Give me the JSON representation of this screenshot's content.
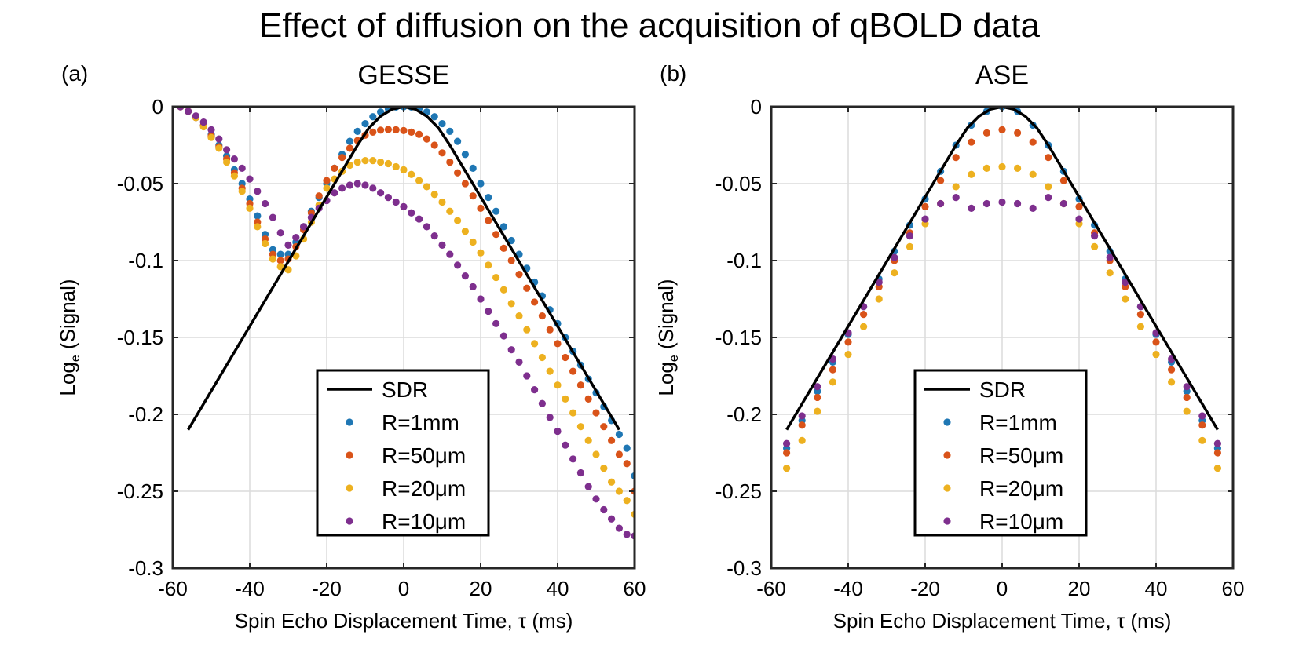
{
  "figure": {
    "title": "Effect of diffusion on the acquisition of qBOLD data"
  },
  "chart_data": [
    {
      "type": "scatter",
      "panel_label": "(a)",
      "title": "GESSE",
      "xlabel": "Spin Echo Displacement Time, τ (ms)",
      "ylabel": "Log",
      "ylabel_sub": "e",
      "ylabel_tail": " (Signal)",
      "xlim": [
        -60,
        60
      ],
      "ylim": [
        -0.3,
        0
      ],
      "xticks": [
        -60,
        -40,
        -20,
        0,
        20,
        40,
        60
      ],
      "yticks": [
        0,
        -0.05,
        -0.1,
        -0.15,
        -0.2,
        -0.25,
        -0.3
      ],
      "xtick_labels": [
        "-60",
        "-40",
        "-20",
        "0",
        "20",
        "40",
        "60"
      ],
      "ytick_labels": [
        "0",
        "-0.05",
        "-0.1",
        "-0.15",
        "-0.2",
        "-0.25",
        "-0.3"
      ],
      "grid": true,
      "legend_position": "bottom-center",
      "line": {
        "name": "SDR",
        "color": "#000000",
        "x": [
          -56,
          -12,
          -9,
          -6,
          -3,
          0,
          3,
          6,
          9,
          12,
          56
        ],
        "y": [
          -0.21,
          -0.025,
          -0.0137,
          -0.0062,
          -0.0016,
          0,
          -0.0016,
          -0.0062,
          -0.0137,
          -0.025,
          -0.21
        ]
      },
      "series": [
        {
          "name": "R=1mm",
          "color": "#1f77b4",
          "x": [
            -58,
            -56,
            -54,
            -52,
            -50,
            -48,
            -46,
            -44,
            -42,
            -40,
            -38,
            -36,
            -34,
            -32,
            -30,
            -28,
            -26,
            -24,
            -22,
            -20,
            -18,
            -16,
            -14,
            -12,
            -10,
            -8,
            -6,
            -4,
            -2,
            0,
            2,
            4,
            6,
            8,
            10,
            12,
            14,
            16,
            18,
            20,
            22,
            24,
            26,
            28,
            30,
            32,
            34,
            36,
            38,
            40,
            42,
            44,
            46,
            48,
            50,
            52,
            54,
            56,
            58,
            60
          ],
          "y": [
            0,
            -0.003,
            -0.007,
            -0.012,
            -0.018,
            -0.025,
            -0.032,
            -0.041,
            -0.05,
            -0.06,
            -0.071,
            -0.083,
            -0.093,
            -0.096,
            -0.096,
            -0.088,
            -0.078,
            -0.068,
            -0.059,
            -0.05,
            -0.04,
            -0.031,
            -0.0225,
            -0.016,
            -0.011,
            -0.0065,
            -0.0034,
            -0.0012,
            -0.0002,
            0,
            -0.0002,
            -0.0012,
            -0.0034,
            -0.0065,
            -0.011,
            -0.016,
            -0.0225,
            -0.031,
            -0.04,
            -0.05,
            -0.059,
            -0.068,
            -0.078,
            -0.087,
            -0.096,
            -0.105,
            -0.114,
            -0.123,
            -0.132,
            -0.141,
            -0.15,
            -0.159,
            -0.168,
            -0.177,
            -0.186,
            -0.195,
            -0.204,
            -0.213,
            -0.222,
            -0.24
          ]
        },
        {
          "name": "R=50μm",
          "color": "#d95319",
          "x": [
            -58,
            -56,
            -54,
            -52,
            -50,
            -48,
            -46,
            -44,
            -42,
            -40,
            -38,
            -36,
            -34,
            -32,
            -30,
            -28,
            -26,
            -24,
            -22,
            -20,
            -18,
            -16,
            -14,
            -12,
            -10,
            -8,
            -6,
            -4,
            -2,
            0,
            2,
            4,
            6,
            8,
            10,
            12,
            14,
            16,
            18,
            20,
            22,
            24,
            26,
            28,
            30,
            32,
            34,
            36,
            38,
            40,
            42,
            44,
            46,
            48,
            50,
            52,
            54,
            56,
            58,
            60
          ],
          "y": [
            0,
            -0.003,
            -0.007,
            -0.012,
            -0.019,
            -0.026,
            -0.034,
            -0.043,
            -0.053,
            -0.063,
            -0.075,
            -0.086,
            -0.096,
            -0.1,
            -0.099,
            -0.091,
            -0.08,
            -0.069,
            -0.058,
            -0.048,
            -0.04,
            -0.033,
            -0.027,
            -0.022,
            -0.0185,
            -0.0165,
            -0.0152,
            -0.0148,
            -0.015,
            -0.0155,
            -0.0165,
            -0.018,
            -0.021,
            -0.025,
            -0.03,
            -0.036,
            -0.043,
            -0.05,
            -0.058,
            -0.066,
            -0.074,
            -0.083,
            -0.092,
            -0.1,
            -0.109,
            -0.118,
            -0.127,
            -0.136,
            -0.145,
            -0.154,
            -0.163,
            -0.172,
            -0.181,
            -0.19,
            -0.199,
            -0.208,
            -0.217,
            -0.226,
            -0.232,
            -0.25
          ]
        },
        {
          "name": "R=20μm",
          "color": "#edb120",
          "x": [
            -58,
            -56,
            -54,
            -52,
            -50,
            -48,
            -46,
            -44,
            -42,
            -40,
            -38,
            -36,
            -34,
            -32,
            -30,
            -28,
            -26,
            -24,
            -22,
            -20,
            -18,
            -16,
            -14,
            -12,
            -10,
            -8,
            -6,
            -4,
            -2,
            0,
            2,
            4,
            6,
            8,
            10,
            12,
            14,
            16,
            18,
            20,
            22,
            24,
            26,
            28,
            30,
            32,
            34,
            36,
            38,
            40,
            42,
            44,
            46,
            48,
            50,
            52,
            54,
            56,
            58,
            60
          ],
          "y": [
            0,
            -0.003,
            -0.007,
            -0.013,
            -0.02,
            -0.027,
            -0.036,
            -0.045,
            -0.055,
            -0.066,
            -0.078,
            -0.089,
            -0.099,
            -0.104,
            -0.106,
            -0.097,
            -0.086,
            -0.075,
            -0.064,
            -0.053,
            -0.047,
            -0.042,
            -0.038,
            -0.036,
            -0.035,
            -0.035,
            -0.036,
            -0.037,
            -0.039,
            -0.041,
            -0.044,
            -0.048,
            -0.052,
            -0.057,
            -0.062,
            -0.068,
            -0.074,
            -0.081,
            -0.088,
            -0.095,
            -0.103,
            -0.111,
            -0.119,
            -0.128,
            -0.136,
            -0.145,
            -0.154,
            -0.163,
            -0.172,
            -0.181,
            -0.19,
            -0.199,
            -0.208,
            -0.217,
            -0.226,
            -0.235,
            -0.244,
            -0.25,
            -0.256,
            -0.265
          ]
        },
        {
          "name": "R=10μm",
          "color": "#7e2f8e",
          "x": [
            -58,
            -56,
            -54,
            -52,
            -50,
            -48,
            -46,
            -44,
            -42,
            -40,
            -38,
            -36,
            -34,
            -32,
            -30,
            -28,
            -26,
            -24,
            -22,
            -20,
            -18,
            -16,
            -14,
            -12,
            -10,
            -8,
            -6,
            -4,
            -2,
            0,
            2,
            4,
            6,
            8,
            10,
            12,
            14,
            16,
            18,
            20,
            22,
            24,
            26,
            28,
            30,
            32,
            34,
            36,
            38,
            40,
            42,
            44,
            46,
            48,
            50,
            52,
            54,
            56,
            58,
            60
          ],
          "y": [
            0,
            -0.003,
            -0.006,
            -0.01,
            -0.015,
            -0.021,
            -0.028,
            -0.034,
            -0.04,
            -0.047,
            -0.055,
            -0.063,
            -0.072,
            -0.082,
            -0.09,
            -0.085,
            -0.078,
            -0.072,
            -0.066,
            -0.061,
            -0.056,
            -0.053,
            -0.051,
            -0.05,
            -0.051,
            -0.053,
            -0.056,
            -0.059,
            -0.062,
            -0.065,
            -0.069,
            -0.073,
            -0.078,
            -0.084,
            -0.09,
            -0.096,
            -0.103,
            -0.11,
            -0.117,
            -0.125,
            -0.133,
            -0.141,
            -0.149,
            -0.158,
            -0.166,
            -0.175,
            -0.184,
            -0.193,
            -0.202,
            -0.211,
            -0.22,
            -0.229,
            -0.238,
            -0.247,
            -0.255,
            -0.262,
            -0.268,
            -0.274,
            -0.278,
            -0.279
          ]
        }
      ]
    },
    {
      "type": "scatter",
      "panel_label": "(b)",
      "title": "ASE",
      "xlabel": "Spin Echo Displacement Time, τ (ms)",
      "ylabel": "Log",
      "ylabel_sub": "e",
      "ylabel_tail": " (Signal)",
      "xlim": [
        -60,
        60
      ],
      "ylim": [
        -0.3,
        0
      ],
      "xticks": [
        -60,
        -40,
        -20,
        0,
        20,
        40,
        60
      ],
      "yticks": [
        0,
        -0.05,
        -0.1,
        -0.15,
        -0.2,
        -0.25,
        -0.3
      ],
      "xtick_labels": [
        "-60",
        "-40",
        "-20",
        "0",
        "20",
        "40",
        "60"
      ],
      "ytick_labels": [
        "0",
        "-0.05",
        "-0.1",
        "-0.15",
        "-0.2",
        "-0.25",
        "-0.3"
      ],
      "grid": true,
      "legend_position": "bottom-center",
      "line": {
        "name": "SDR",
        "color": "#000000",
        "x": [
          -56,
          -12,
          -9,
          -6,
          -3,
          0,
          3,
          6,
          9,
          12,
          56
        ],
        "y": [
          -0.21,
          -0.025,
          -0.0137,
          -0.0062,
          -0.0016,
          0,
          -0.0016,
          -0.0062,
          -0.0137,
          -0.025,
          -0.21
        ]
      },
      "series": [
        {
          "name": "R=1mm",
          "color": "#1f77b4",
          "x": [
            -56,
            -52,
            -48,
            -44,
            -40,
            -36,
            -32,
            -28,
            -24,
            -20,
            -16,
            -12,
            -8,
            -4,
            0,
            4,
            8,
            12,
            16,
            20,
            24,
            28,
            32,
            36,
            40,
            44,
            48,
            52,
            56
          ],
          "y": [
            -0.222,
            -0.204,
            -0.185,
            -0.166,
            -0.148,
            -0.13,
            -0.112,
            -0.094,
            -0.077,
            -0.06,
            -0.042,
            -0.025,
            -0.012,
            -0.003,
            0,
            -0.003,
            -0.012,
            -0.025,
            -0.042,
            -0.06,
            -0.077,
            -0.094,
            -0.112,
            -0.13,
            -0.148,
            -0.166,
            -0.185,
            -0.204,
            -0.222
          ]
        },
        {
          "name": "R=50μm",
          "color": "#d95319",
          "x": [
            -56,
            -52,
            -48,
            -44,
            -40,
            -36,
            -32,
            -28,
            -24,
            -20,
            -16,
            -12,
            -8,
            -4,
            0,
            4,
            8,
            12,
            16,
            20,
            24,
            28,
            32,
            36,
            40,
            44,
            48,
            52,
            56
          ],
          "y": [
            -0.225,
            -0.207,
            -0.189,
            -0.171,
            -0.153,
            -0.135,
            -0.117,
            -0.1,
            -0.082,
            -0.065,
            -0.048,
            -0.033,
            -0.023,
            -0.017,
            -0.015,
            -0.017,
            -0.023,
            -0.033,
            -0.048,
            -0.065,
            -0.082,
            -0.1,
            -0.117,
            -0.135,
            -0.153,
            -0.171,
            -0.189,
            -0.207,
            -0.225
          ]
        },
        {
          "name": "R=20μm",
          "color": "#edb120",
          "x": [
            -56,
            -52,
            -48,
            -44,
            -40,
            -36,
            -32,
            -28,
            -24,
            -20,
            -16,
            -12,
            -8,
            -4,
            0,
            4,
            8,
            12,
            16,
            20,
            24,
            28,
            32,
            36,
            40,
            44,
            48,
            52,
            56
          ],
          "y": [
            -0.235,
            -0.217,
            -0.198,
            -0.179,
            -0.161,
            -0.143,
            -0.125,
            -0.108,
            -0.091,
            -0.076,
            -0.063,
            -0.052,
            -0.044,
            -0.04,
            -0.039,
            -0.04,
            -0.044,
            -0.052,
            -0.063,
            -0.076,
            -0.091,
            -0.108,
            -0.125,
            -0.143,
            -0.161,
            -0.179,
            -0.198,
            -0.217,
            -0.235
          ]
        },
        {
          "name": "R=10μm",
          "color": "#7e2f8e",
          "x": [
            -56,
            -52,
            -48,
            -44,
            -40,
            -36,
            -32,
            -28,
            -24,
            -20,
            -16,
            -12,
            -8,
            -4,
            0,
            4,
            8,
            12,
            16,
            20,
            24,
            28,
            32,
            36,
            40,
            44,
            48,
            52,
            56
          ],
          "y": [
            -0.219,
            -0.201,
            -0.182,
            -0.164,
            -0.147,
            -0.13,
            -0.114,
            -0.098,
            -0.084,
            -0.073,
            -0.063,
            -0.059,
            -0.066,
            -0.063,
            -0.062,
            -0.063,
            -0.066,
            -0.059,
            -0.063,
            -0.073,
            -0.084,
            -0.098,
            -0.114,
            -0.13,
            -0.147,
            -0.164,
            -0.182,
            -0.201,
            -0.219
          ]
        }
      ]
    }
  ]
}
